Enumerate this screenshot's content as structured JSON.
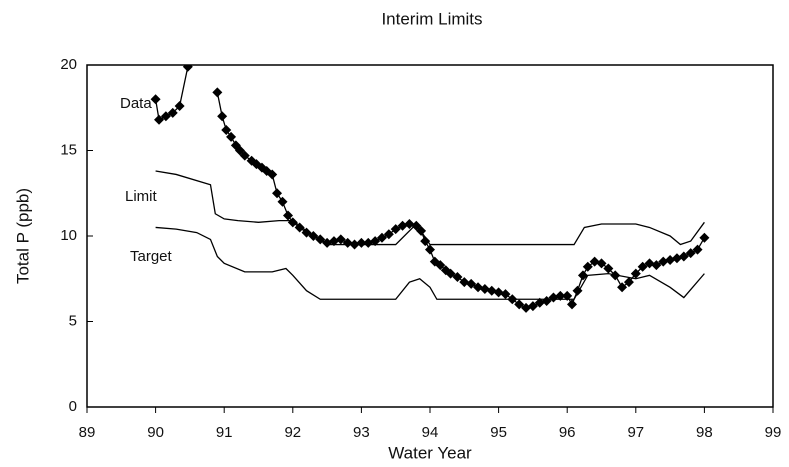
{
  "chart_data": {
    "type": "line",
    "title": "Interim Limits",
    "x_label": "Water Year",
    "y_label": "Total P (ppb)",
    "xlim": [
      89,
      99
    ],
    "xticks": [
      89,
      90,
      91,
      92,
      93,
      94,
      95,
      96,
      97,
      98,
      99
    ],
    "ylim": [
      0,
      20
    ],
    "yticks": [
      0,
      5,
      10,
      15,
      20
    ],
    "grid": false,
    "series": [
      {
        "name": "Data",
        "color": "#000000",
        "marker": "diamond",
        "x": [
          90.0,
          90.05,
          90.15,
          90.25,
          90.35,
          90.47,
          90.6,
          90.9,
          90.97,
          91.03,
          91.1,
          91.17,
          91.23,
          91.3,
          91.4,
          91.47,
          91.55,
          91.62,
          91.7,
          91.77,
          91.85,
          91.93,
          92.0,
          92.1,
          92.2,
          92.3,
          92.4,
          92.5,
          92.6,
          92.7,
          92.8,
          92.9,
          93.0,
          93.1,
          93.2,
          93.3,
          93.4,
          93.5,
          93.6,
          93.7,
          93.8,
          93.87,
          93.93,
          94.0,
          94.07,
          94.15,
          94.23,
          94.3,
          94.4,
          94.5,
          94.6,
          94.7,
          94.8,
          94.9,
          95.0,
          95.1,
          95.2,
          95.3,
          95.4,
          95.5,
          95.6,
          95.7,
          95.8,
          95.9,
          96.0,
          96.07,
          96.15,
          96.23,
          96.3,
          96.4,
          96.5,
          96.6,
          96.7,
          96.8,
          96.9,
          97.0,
          97.1,
          97.2,
          97.3,
          97.4,
          97.5,
          97.6,
          97.7,
          97.8,
          97.9,
          98.0
        ],
        "values": [
          18.0,
          16.8,
          17.0,
          17.2,
          17.6,
          19.9,
          null,
          18.4,
          17.0,
          16.2,
          15.8,
          15.3,
          15.0,
          14.7,
          14.4,
          14.2,
          14.0,
          13.8,
          13.6,
          12.5,
          12.0,
          11.2,
          10.8,
          10.5,
          10.2,
          10.0,
          9.8,
          9.6,
          9.7,
          9.8,
          9.6,
          9.5,
          9.6,
          9.6,
          9.7,
          9.9,
          10.1,
          10.4,
          10.6,
          10.7,
          10.6,
          10.3,
          9.7,
          9.2,
          8.5,
          8.3,
          8.0,
          7.8,
          7.6,
          7.3,
          7.2,
          7.0,
          6.9,
          6.8,
          6.7,
          6.6,
          6.3,
          6.0,
          5.8,
          5.9,
          6.1,
          6.2,
          6.4,
          6.5,
          6.5,
          6.0,
          6.8,
          7.7,
          8.2,
          8.5,
          8.4,
          8.1,
          7.7,
          7.0,
          7.3,
          7.8,
          8.2,
          8.4,
          8.3,
          8.5,
          8.6,
          8.7,
          8.8,
          9.0,
          9.2,
          9.9
        ]
      },
      {
        "name": "Limit",
        "color": "#000000",
        "marker": "none",
        "x": [
          90.0,
          90.3,
          90.8,
          90.87,
          91.0,
          91.2,
          91.5,
          91.8,
          92.0,
          92.2,
          92.5,
          93.5,
          93.8,
          94.0,
          96.1,
          96.25,
          96.5,
          97.0,
          97.2,
          97.5,
          97.65,
          97.8,
          98.0
        ],
        "values": [
          13.8,
          13.6,
          13.0,
          11.3,
          11.0,
          10.9,
          10.8,
          10.9,
          10.9,
          10.3,
          9.5,
          9.5,
          10.7,
          9.5,
          9.5,
          10.5,
          10.7,
          10.7,
          10.5,
          10.0,
          9.5,
          9.7,
          10.8
        ]
      },
      {
        "name": "Target",
        "color": "#000000",
        "marker": "none",
        "x": [
          90.0,
          90.3,
          90.6,
          90.8,
          90.9,
          91.0,
          91.3,
          91.7,
          91.9,
          92.0,
          92.2,
          92.4,
          93.5,
          93.7,
          93.85,
          94.0,
          94.1,
          96.1,
          96.3,
          96.6,
          97.0,
          97.2,
          97.5,
          97.7,
          98.0
        ],
        "values": [
          10.5,
          10.4,
          10.2,
          9.8,
          8.8,
          8.4,
          7.9,
          7.9,
          8.1,
          7.7,
          6.8,
          6.3,
          6.3,
          7.3,
          7.5,
          7.0,
          6.3,
          6.3,
          7.7,
          7.8,
          7.5,
          7.7,
          7.0,
          6.4,
          7.8
        ]
      }
    ]
  }
}
